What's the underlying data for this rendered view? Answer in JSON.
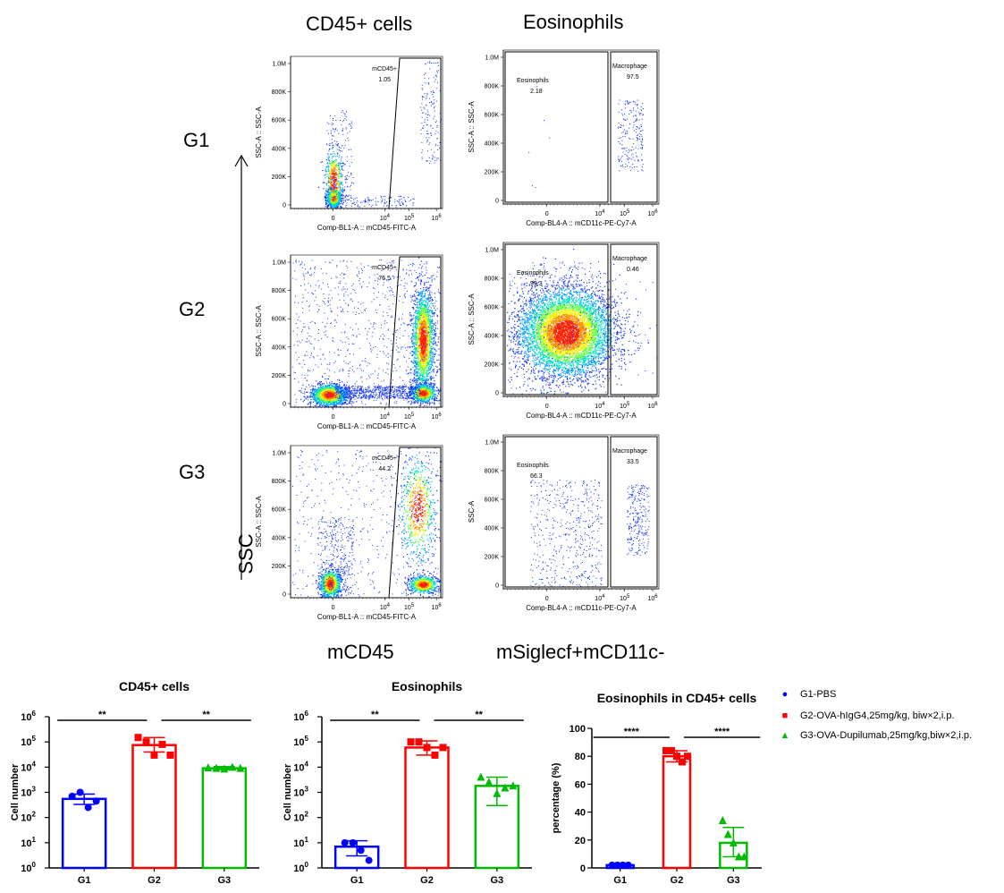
{
  "flow": {
    "column_titles": [
      "CD45+ cells",
      "Eosinophils"
    ],
    "row_labels": [
      "G1",
      "G2",
      "G3"
    ],
    "ssc_label": "SSC",
    "bottom_labels": [
      "mCD45",
      "mSiglecf+mCD11c-"
    ],
    "cd45_panels": [
      {
        "gate_name": "mCD45+",
        "gate_value": "1.05"
      },
      {
        "gate_name": "mCD45+",
        "gate_value": "75.5"
      },
      {
        "gate_name": "mCD45+",
        "gate_value": "44.2"
      }
    ],
    "eos_panels": [
      {
        "left_name": "Eosinophils",
        "left_value": "2.18",
        "right_name": "Macrophage",
        "right_value": "97.5"
      },
      {
        "left_name": "Eosinophils",
        "left_value": "99.3",
        "right_name": "Macrophage",
        "right_value": "0.46"
      },
      {
        "left_name": "Eosinophils",
        "left_value": "66.3",
        "right_name": "Macrophage",
        "right_value": "33.5"
      }
    ],
    "cd45_axis": {
      "y_label": "SSC-A :: SSC-A",
      "x_label": "Comp-BL1-A :: mCD45-FITC-A",
      "y_ticks": [
        "0",
        "200K",
        "400K",
        "600K",
        "800K",
        "1.0M"
      ],
      "x_ticks": [
        "0",
        "10",
        "10",
        "10"
      ],
      "x_tick_exp": [
        "",
        "4",
        "5",
        "6"
      ]
    },
    "eos_axis": {
      "y_label_g1": "SSC-A :: SSC-A",
      "y_label_g2": "SSC-A :: SSC-A",
      "y_label_g3": "SSC-A",
      "x_label": "Comp-BL4-A :: mCD11c-PE-Cy7-A",
      "y_ticks": [
        "0",
        "200K",
        "400K",
        "600K",
        "800K",
        "1.0M"
      ],
      "x_ticks": [
        "0",
        "10",
        "10",
        "10"
      ],
      "x_tick_exp": [
        "",
        "4",
        "5",
        "6"
      ]
    }
  },
  "legend": [
    {
      "label": "G1-PBS",
      "color": "#0000ff",
      "marker": "circle"
    },
    {
      "label": "G2-OVA-hIgG4,25mg/kg, biw×2,i.p.",
      "color": "#ff0000",
      "marker": "square"
    },
    {
      "label": "G3-OVA-Dupilumab,25mg/kg,biw×2,i.p.",
      "color": "#00bb00",
      "marker": "triangle"
    }
  ],
  "chart_data": [
    {
      "type": "bar",
      "title": "CD45+ cells",
      "ylabel": "Cell number",
      "yscale": "log",
      "ylim": [
        1,
        1000000
      ],
      "y_ticks": [
        "10",
        "10",
        "10",
        "10",
        "10",
        "10",
        "10"
      ],
      "y_tick_exp": [
        "0",
        "1",
        "2",
        "3",
        "4",
        "5",
        "6"
      ],
      "categories": [
        "G1",
        "G2",
        "G3"
      ],
      "values": [
        550,
        75000,
        9000
      ],
      "error_low": [
        330,
        40000,
        8000
      ],
      "error_high": [
        850,
        150000,
        10500
      ],
      "points": [
        [
          700,
          1000,
          250,
          450
        ],
        [
          150000,
          100000,
          30000,
          80000,
          30000
        ],
        [
          9500,
          9000,
          8500,
          10000,
          9000
        ]
      ],
      "significance": [
        {
          "from": "G1",
          "to": "G2",
          "label": "**"
        },
        {
          "from": "G2",
          "to": "G3",
          "label": "**"
        }
      ]
    },
    {
      "type": "bar",
      "title": "Eosinophils",
      "ylabel": "Cell number",
      "yscale": "log",
      "ylim": [
        1,
        1000000
      ],
      "y_ticks": [
        "10",
        "10",
        "10",
        "10",
        "10",
        "10",
        "10"
      ],
      "y_tick_exp": [
        "0",
        "1",
        "2",
        "3",
        "4",
        "5",
        "6"
      ],
      "categories": [
        "G1",
        "G2",
        "G3"
      ],
      "values": [
        7,
        60000,
        1800
      ],
      "error_low": [
        3,
        30000,
        300
      ],
      "error_high": [
        12,
        110000,
        4000
      ],
      "points": [
        [
          10,
          10,
          5,
          2
        ],
        [
          100000,
          100000,
          60000,
          30000,
          60000
        ],
        [
          4000,
          2500,
          900,
          1500,
          1800
        ]
      ],
      "significance": [
        {
          "from": "G1",
          "to": "G2",
          "label": "**"
        },
        {
          "from": "G2",
          "to": "G3",
          "label": "**"
        }
      ]
    },
    {
      "type": "bar",
      "title": "Eosinophils in CD45+ cells",
      "ylabel": "percentage (%)",
      "yscale": "linear",
      "ylim": [
        0,
        100
      ],
      "y_ticks": [
        "0",
        "20",
        "40",
        "60",
        "80",
        "100"
      ],
      "y_tick_exp": [],
      "categories": [
        "G1",
        "G2",
        "G3"
      ],
      "values": [
        2,
        80,
        18
      ],
      "error_low": [
        1,
        76,
        8
      ],
      "error_high": [
        3,
        84,
        29
      ],
      "points": [
        [
          2,
          2,
          2,
          2
        ],
        [
          84,
          84,
          80,
          76,
          80
        ],
        [
          34,
          24,
          18,
          8,
          8
        ]
      ],
      "significance": [
        {
          "from": "G1",
          "to": "G2",
          "label": "****"
        },
        {
          "from": "G2",
          "to": "G3",
          "label": "****"
        }
      ]
    }
  ],
  "colors": {
    "g1": "#0000ff",
    "g2": "#ff0000",
    "g3": "#00bb00"
  }
}
